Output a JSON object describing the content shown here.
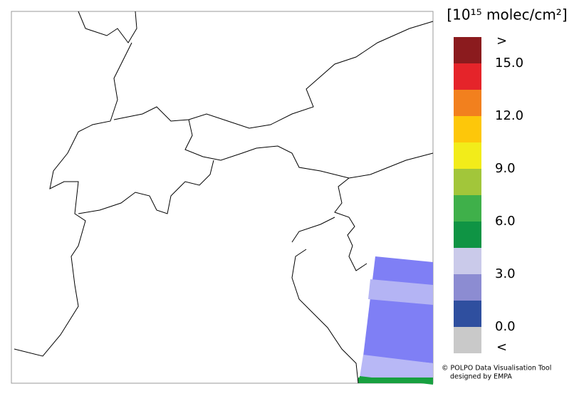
{
  "legend": {
    "title": "[10¹⁵ molec/cm²]",
    "range": [
      0,
      15
    ],
    "colors": [
      "#2f4f9f",
      "#8c8cd2",
      "#cacaea",
      "#0f9444",
      "#3fb04a",
      "#a2c63a",
      "#f2ec1a",
      "#fdc70a",
      "#f2801e",
      "#e5242a"
    ],
    "above_color": "#8b1b1e",
    "below_color": "#c9c9c9",
    "above_label": ">",
    "below_label": "<",
    "ticks": [
      {
        "value": 0,
        "label": "0.0"
      },
      {
        "value": 3,
        "label": "3.0"
      },
      {
        "value": 6,
        "label": "6.0"
      },
      {
        "value": 9,
        "label": "9.0"
      },
      {
        "value": 12,
        "label": "12.0"
      },
      {
        "value": 15,
        "label": "15.0"
      }
    ]
  },
  "credits": {
    "line1": "© POLPO Data Visualisation Tool",
    "line2": "designed by EMPA"
  }
}
